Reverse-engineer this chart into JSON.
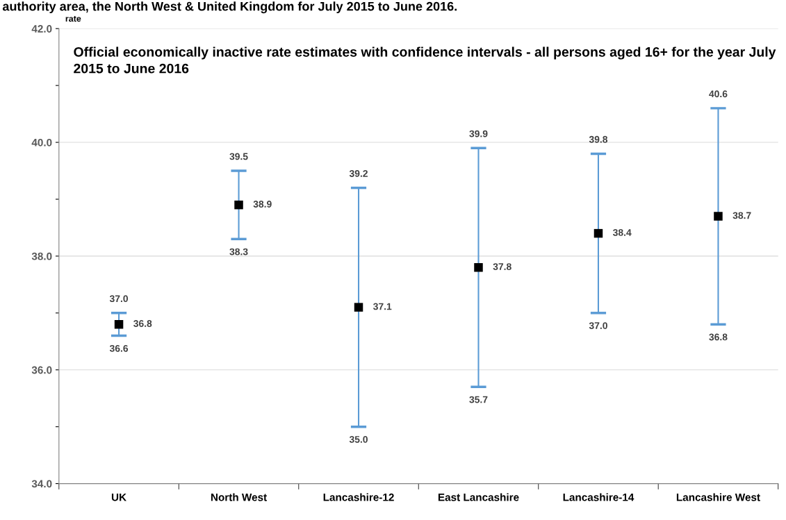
{
  "chart_data": {
    "type": "scatter",
    "title": "Official economically inactive rate estimates with confidence intervals - all persons aged 16+ for the year July 2015 to June 2016",
    "ylabel": "rate",
    "categories": [
      "UK",
      "North West",
      "Lancashire-12",
      "East Lancashire",
      "Lancashire-14",
      "Lancashire West"
    ],
    "series": [
      {
        "color": "#000000",
        "values": [
          36.8,
          38.9,
          37.1,
          37.8,
          38.4,
          38.7
        ],
        "errors": [
          [
            36.6,
            37.0
          ],
          [
            38.3,
            39.5
          ],
          [
            35.0,
            39.2
          ],
          [
            35.7,
            39.9
          ],
          [
            37.0,
            39.8
          ],
          [
            36.8,
            40.6
          ]
        ]
      }
    ],
    "data_labels": true,
    "annotations": [
      {
        "text": "36.6",
        "x": "UK",
        "y": 36.6
      },
      {
        "text": "37.0",
        "x": "UK",
        "y": 37.0
      },
      {
        "text": "38.3",
        "x": "North West",
        "y": 38.3
      },
      {
        "text": "39.5",
        "x": "North West",
        "y": 39.5
      },
      {
        "text": "35.0",
        "x": "Lancashire-12",
        "y": 35.0
      },
      {
        "text": "39.2",
        "x": "Lancashire-12",
        "y": 39.2
      },
      {
        "text": "35.7",
        "x": "East Lancashire",
        "y": 35.7
      },
      {
        "text": "39.9",
        "x": "East Lancashire",
        "y": 39.9
      },
      {
        "text": "37.0",
        "x": "Lancashire-14",
        "y": 37.0
      },
      {
        "text": "39.8",
        "x": "Lancashire-14",
        "y": 39.8
      },
      {
        "text": "36.8",
        "x": "Lancashire West",
        "y": 36.8
      },
      {
        "text": "40.6",
        "x": "Lancashire West",
        "y": 40.6
      },
      "authority area, the North West & United Kingdom for July 2015 to June 2016."
    ],
    "ylim": [
      34.0,
      42.0
    ],
    "yticks": [
      {
        "value": 34,
        "label": "34.0"
      },
      {
        "value": 35,
        "label": null
      },
      {
        "value": 36,
        "label": "36.0"
      },
      {
        "value": 37,
        "label": null
      },
      {
        "value": 38,
        "label": "38.0"
      },
      {
        "value": 39,
        "label": null
      },
      {
        "value": 40,
        "label": "40.0"
      },
      {
        "value": 41,
        "label": null
      },
      {
        "value": 42,
        "label": "42.0"
      }
    ],
    "grid": "y",
    "marker": "square"
  }
}
